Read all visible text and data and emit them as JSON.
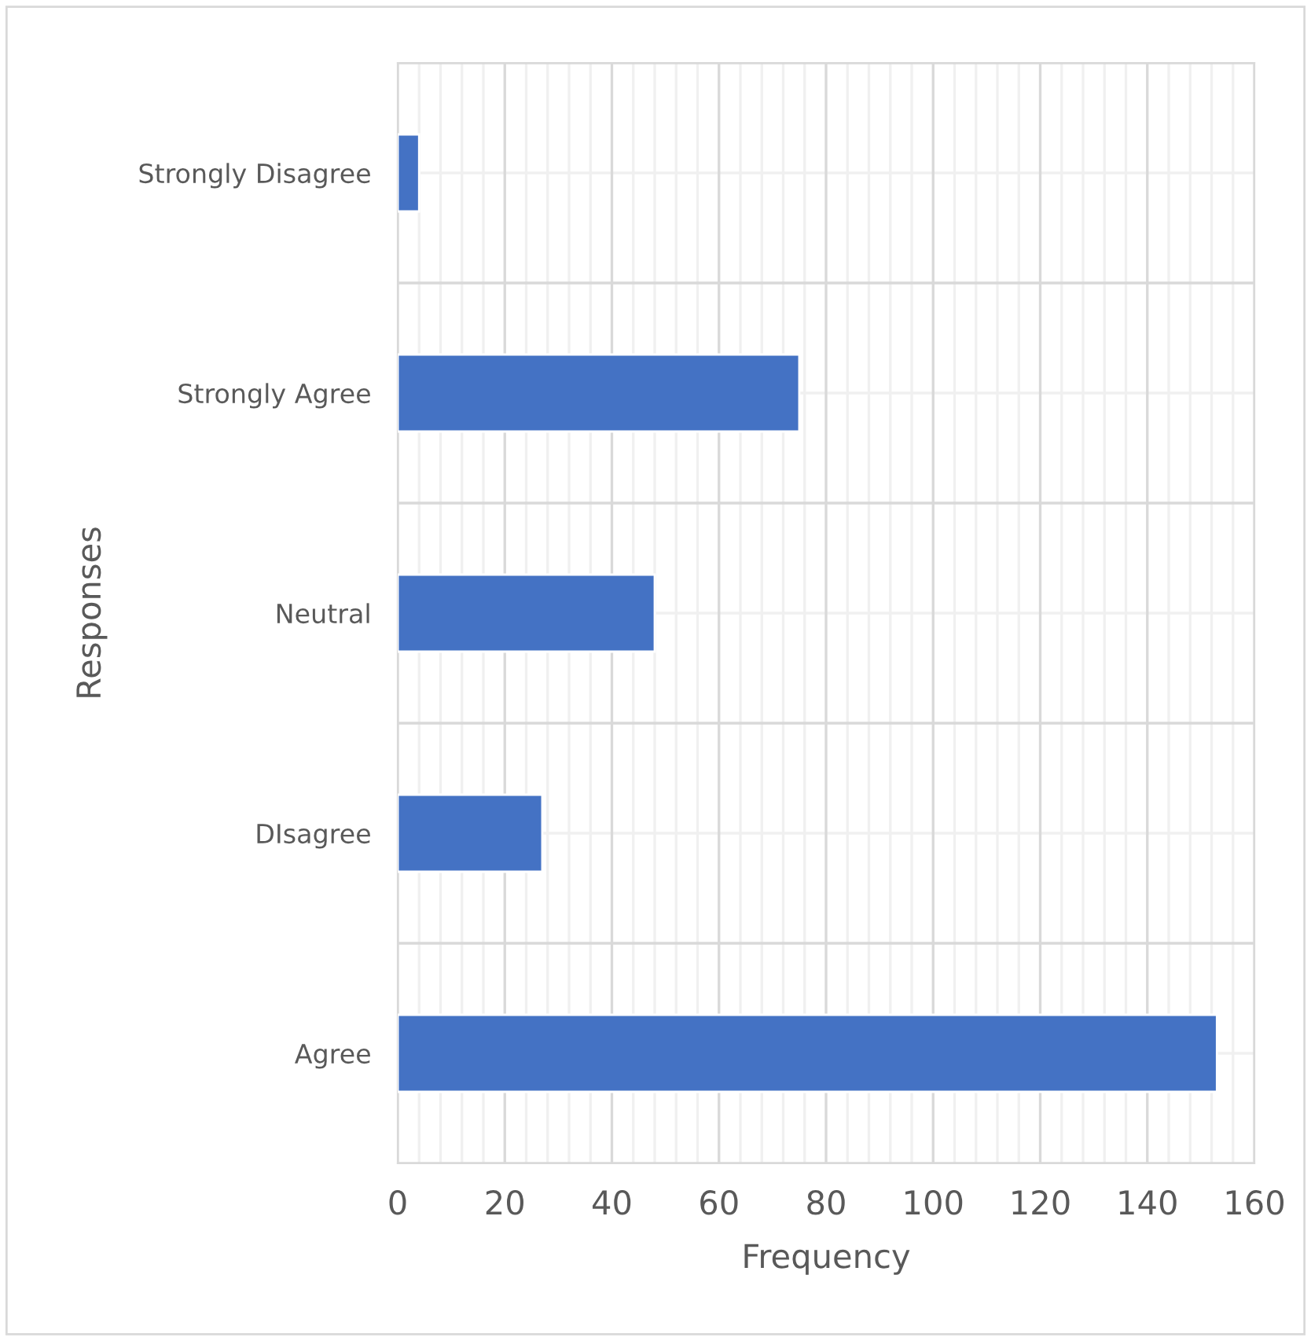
{
  "chart_data": {
    "type": "bar",
    "orientation": "horizontal",
    "xlabel": "Frequency",
    "ylabel": "Responses",
    "categories": [
      "Strongly Disagree",
      "Strongly Agree",
      "Neutral",
      "DIsagree",
      "Agree"
    ],
    "values": [
      4,
      75,
      48,
      27,
      153
    ],
    "color": "#4472c4",
    "xlim": [
      0,
      160
    ],
    "xticks": [
      0,
      20,
      40,
      60,
      80,
      100,
      120,
      140,
      160
    ],
    "grid": true
  }
}
